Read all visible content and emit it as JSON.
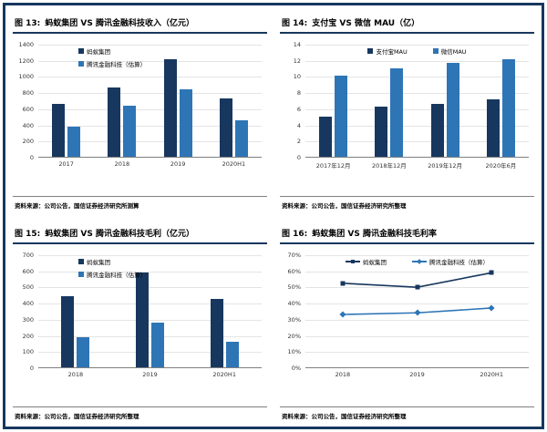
{
  "page": {
    "border_color": "#17375E",
    "background": "#ffffff"
  },
  "colors": {
    "series_dark": "#17375E",
    "series_light": "#2E75B6",
    "gridline": "#e4e4e4"
  },
  "panels": [
    {
      "fig_label": "图  13:",
      "title": "蚂蚁集团 VS 腾讯金融科技收入（亿元）",
      "source": "资料来源：公司公告，国信证券经济研究所测算"
    },
    {
      "fig_label": "图 14:",
      "title": "支付宝 VS 微信 MAU（亿）",
      "source": "资料来源：公司公告，国信证券经济研究所整理"
    },
    {
      "fig_label": "图  15:",
      "title": "蚂蚁集团 VS 腾讯金融科技毛利（亿元）",
      "source": "资料来源：公司公告，国信证券经济研究所整理"
    },
    {
      "fig_label": "图 16:",
      "title": "蚂蚁集团 VS 腾讯金融科技毛利率",
      "source": "资料来源：公司公告，国信证券经济研究所整理"
    }
  ],
  "chart_data": [
    {
      "type": "bar",
      "title": "蚂蚁集团 VS 腾讯金融科技收入（亿元）",
      "categories": [
        "2017",
        "2018",
        "2019",
        "2020H1"
      ],
      "series": [
        {
          "name": "蚂蚁集团",
          "color": "#17375E",
          "values": [
            654,
            857,
            1206,
            725
          ]
        },
        {
          "name": "腾讯金融科技（估算）",
          "color": "#2E75B6",
          "values": [
            370,
            630,
            840,
            450
          ]
        }
      ],
      "xlabel": "",
      "ylabel": "",
      "ylim": [
        0,
        1400
      ],
      "ytick_values": [
        0,
        200,
        400,
        600,
        800,
        1000,
        1200,
        1400
      ],
      "ytick_labels": [
        "0",
        "200",
        "400",
        "600",
        "800",
        "1000",
        "1200",
        "1400"
      ],
      "grid": true,
      "legend_layout": "stack"
    },
    {
      "type": "bar",
      "title": "支付宝 VS 微信 MAU（亿）",
      "categories": [
        "2017年12月",
        "2018年12月",
        "2019年12月",
        "2020年6月"
      ],
      "series": [
        {
          "name": "支付宝MAU",
          "color": "#17375E",
          "values": [
            5.0,
            6.2,
            6.6,
            7.1
          ]
        },
        {
          "name": "微信MAU",
          "color": "#2E75B6",
          "values": [
            10.0,
            11.0,
            11.6,
            12.1
          ]
        }
      ],
      "xlabel": "",
      "ylabel": "",
      "ylim": [
        0,
        14
      ],
      "ytick_values": [
        0,
        2,
        4,
        6,
        8,
        10,
        12,
        14
      ],
      "ytick_labels": [
        "0",
        "2",
        "4",
        "6",
        "8",
        "10",
        "12",
        "14"
      ],
      "grid": true,
      "legend_layout": "row"
    },
    {
      "type": "bar",
      "title": "蚂蚁集团 VS 腾讯金融科技毛利（亿元）",
      "categories": [
        "2018",
        "2019",
        "2020H1"
      ],
      "series": [
        {
          "name": "蚂蚁集团",
          "color": "#17375E",
          "values": [
            440,
            590,
            425
          ]
        },
        {
          "name": "腾讯金融科技（估算）",
          "color": "#2E75B6",
          "values": [
            185,
            275,
            160
          ]
        }
      ],
      "xlabel": "",
      "ylabel": "",
      "ylim": [
        0,
        700
      ],
      "ytick_values": [
        0,
        100,
        200,
        300,
        400,
        500,
        600,
        700
      ],
      "ytick_labels": [
        "0",
        "100",
        "200",
        "300",
        "400",
        "500",
        "600",
        "700"
      ],
      "grid": true,
      "legend_layout": "stack"
    },
    {
      "type": "line",
      "title": "蚂蚁集团 VS 腾讯金融科技毛利率",
      "categories": [
        "2018",
        "2019",
        "2020H1"
      ],
      "series": [
        {
          "name": "蚂蚁集团",
          "color": "#17375E",
          "marker": "square",
          "values": [
            52.5,
            50.0,
            59.0
          ]
        },
        {
          "name": "腾讯金融科技（估算）",
          "color": "#2E75B6",
          "marker": "diamond",
          "values": [
            33.0,
            34.0,
            37.0
          ]
        }
      ],
      "xlabel": "",
      "ylabel": "",
      "ylim": [
        0,
        70
      ],
      "ytick_values": [
        0,
        10,
        20,
        30,
        40,
        50,
        60,
        70
      ],
      "ytick_labels": [
        "0%",
        "10%",
        "20%",
        "30%",
        "40%",
        "50%",
        "60%",
        "70%"
      ],
      "grid": true,
      "legend_layout": "row"
    }
  ]
}
